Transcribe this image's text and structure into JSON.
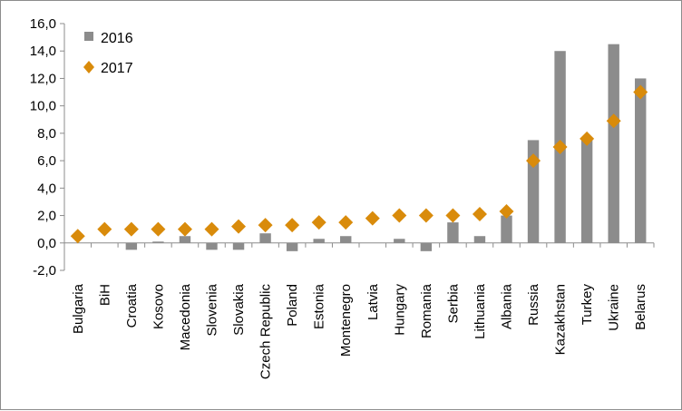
{
  "chart_data": {
    "type": "bar",
    "categories": [
      "Bulgaria",
      "BiH",
      "Croatia",
      "Kosovo",
      "Macedonia",
      "Slovenia",
      "Slovakia",
      "Czech Republic",
      "Poland",
      "Estonia",
      "Montenegro",
      "Latvia",
      "Hungary",
      "Romania",
      "Serbia",
      "Lithuania",
      "Albania",
      "Russia",
      "Kazakhstan",
      "Turkey",
      "Ukraine",
      "Belarus"
    ],
    "series": [
      {
        "name": "2016",
        "type": "bar",
        "color": "#8c8c8c",
        "values": [
          0.0,
          0.0,
          -0.5,
          0.1,
          0.5,
          -0.5,
          -0.5,
          0.7,
          -0.6,
          0.3,
          0.5,
          0.0,
          0.3,
          -0.6,
          1.5,
          0.5,
          2.0,
          7.5,
          14.0,
          7.7,
          14.5,
          12.0
        ]
      },
      {
        "name": "2017",
        "type": "scatter",
        "marker": "diamond",
        "color": "#d98b0b",
        "values": [
          0.5,
          1.0,
          1.0,
          1.0,
          1.0,
          1.0,
          1.2,
          1.3,
          1.3,
          1.5,
          1.5,
          1.8,
          2.0,
          2.0,
          2.0,
          2.1,
          2.3,
          6.0,
          7.0,
          7.6,
          8.9,
          11.0
        ]
      }
    ],
    "ylim": [
      -2.0,
      16.0
    ],
    "yticks": [
      "-2,0",
      "0,0",
      "2,0",
      "4,0",
      "6,0",
      "8,0",
      "10,0",
      "12,0",
      "14,0",
      "16,0"
    ],
    "grid": false,
    "legend_position": "top-left",
    "title": "",
    "xlabel": "",
    "ylabel": ""
  }
}
